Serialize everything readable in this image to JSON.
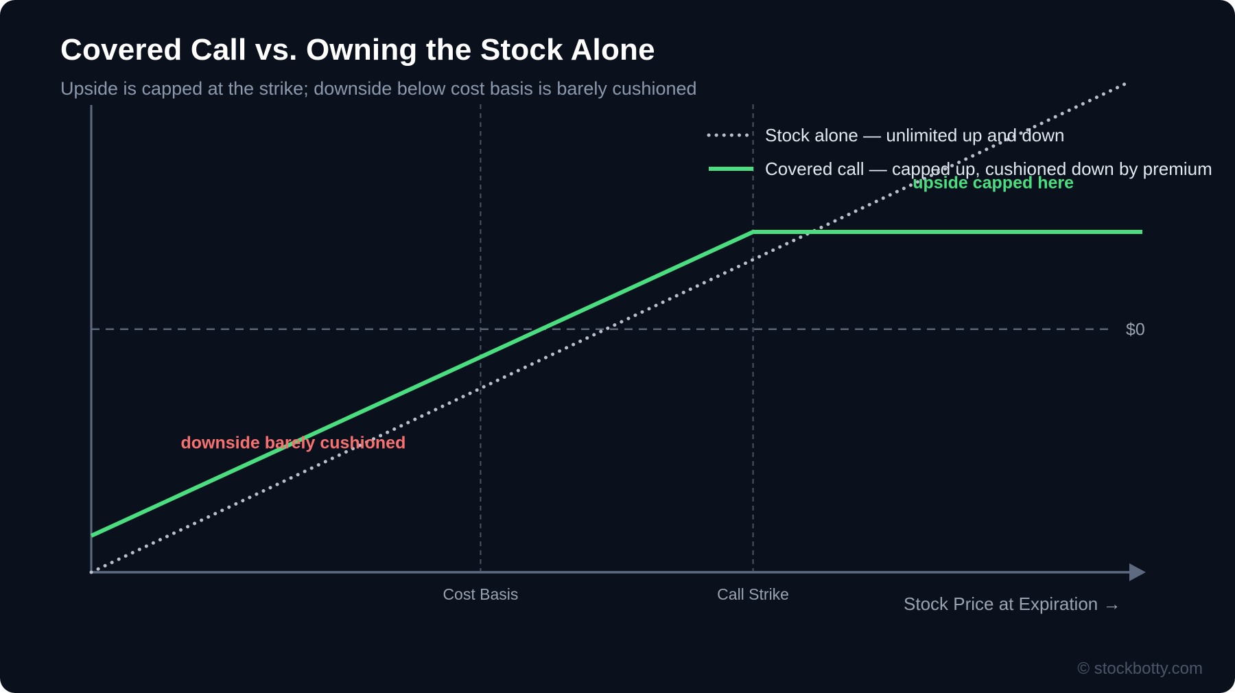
{
  "header": {
    "title": "Covered Call vs. Owning the Stock Alone",
    "subtitle": "Upside is capped at the strike; downside below cost basis is barely cushioned"
  },
  "footer": {
    "watermark": "© stockbotty.com"
  },
  "colors": {
    "background": "#0b111c",
    "axis": "#5d6a80",
    "grid": "#4b5566",
    "stock_line": "#b9c0cc",
    "covered_call_line": "#4ade80",
    "upside_annotation": "#4ade80",
    "downside_annotation": "#f87171",
    "tick_text": "#9aa3b2"
  },
  "chart_data": {
    "type": "line",
    "title": "Covered Call vs. Owning the Stock Alone",
    "subtitle": "Upside is capped at the strike; downside below cost basis is barely cushioned",
    "xlabel": "Stock Price at Expiration →",
    "ylabel": "",
    "x_ticks": [
      {
        "label": "Cost Basis",
        "x": 1.0
      },
      {
        "label": "Call Strike",
        "x": 1.7
      }
    ],
    "y_ticks": [
      {
        "label": "$0",
        "y": 0
      }
    ],
    "xlim": [
      0,
      2.7
    ],
    "ylim": [
      -1,
      0.88
    ],
    "grid": "dashed verticals at cost basis and call strike, dashed horizontal at $0",
    "legend_position": "top-right",
    "series": [
      {
        "name": "Stock alone — unlimited up and down",
        "style": "dotted",
        "color": "#b9c0cc",
        "x": [
          0,
          2.67
        ],
        "y": [
          -1.0,
          1.02
        ]
      },
      {
        "name": "Covered call — capped up, cushioned down by premium",
        "style": "solid",
        "color": "#4ade80",
        "x": [
          0,
          1.7,
          2.7
        ],
        "y": [
          -0.85,
          0.4,
          0.4
        ]
      }
    ],
    "annotations": [
      {
        "text": "upside capped here",
        "x": 2.11,
        "y": 0.58,
        "color": "#4ade80"
      },
      {
        "text": "downside barely cushioned",
        "x": 0.23,
        "y": -0.49,
        "color": "#f87171"
      }
    ]
  }
}
